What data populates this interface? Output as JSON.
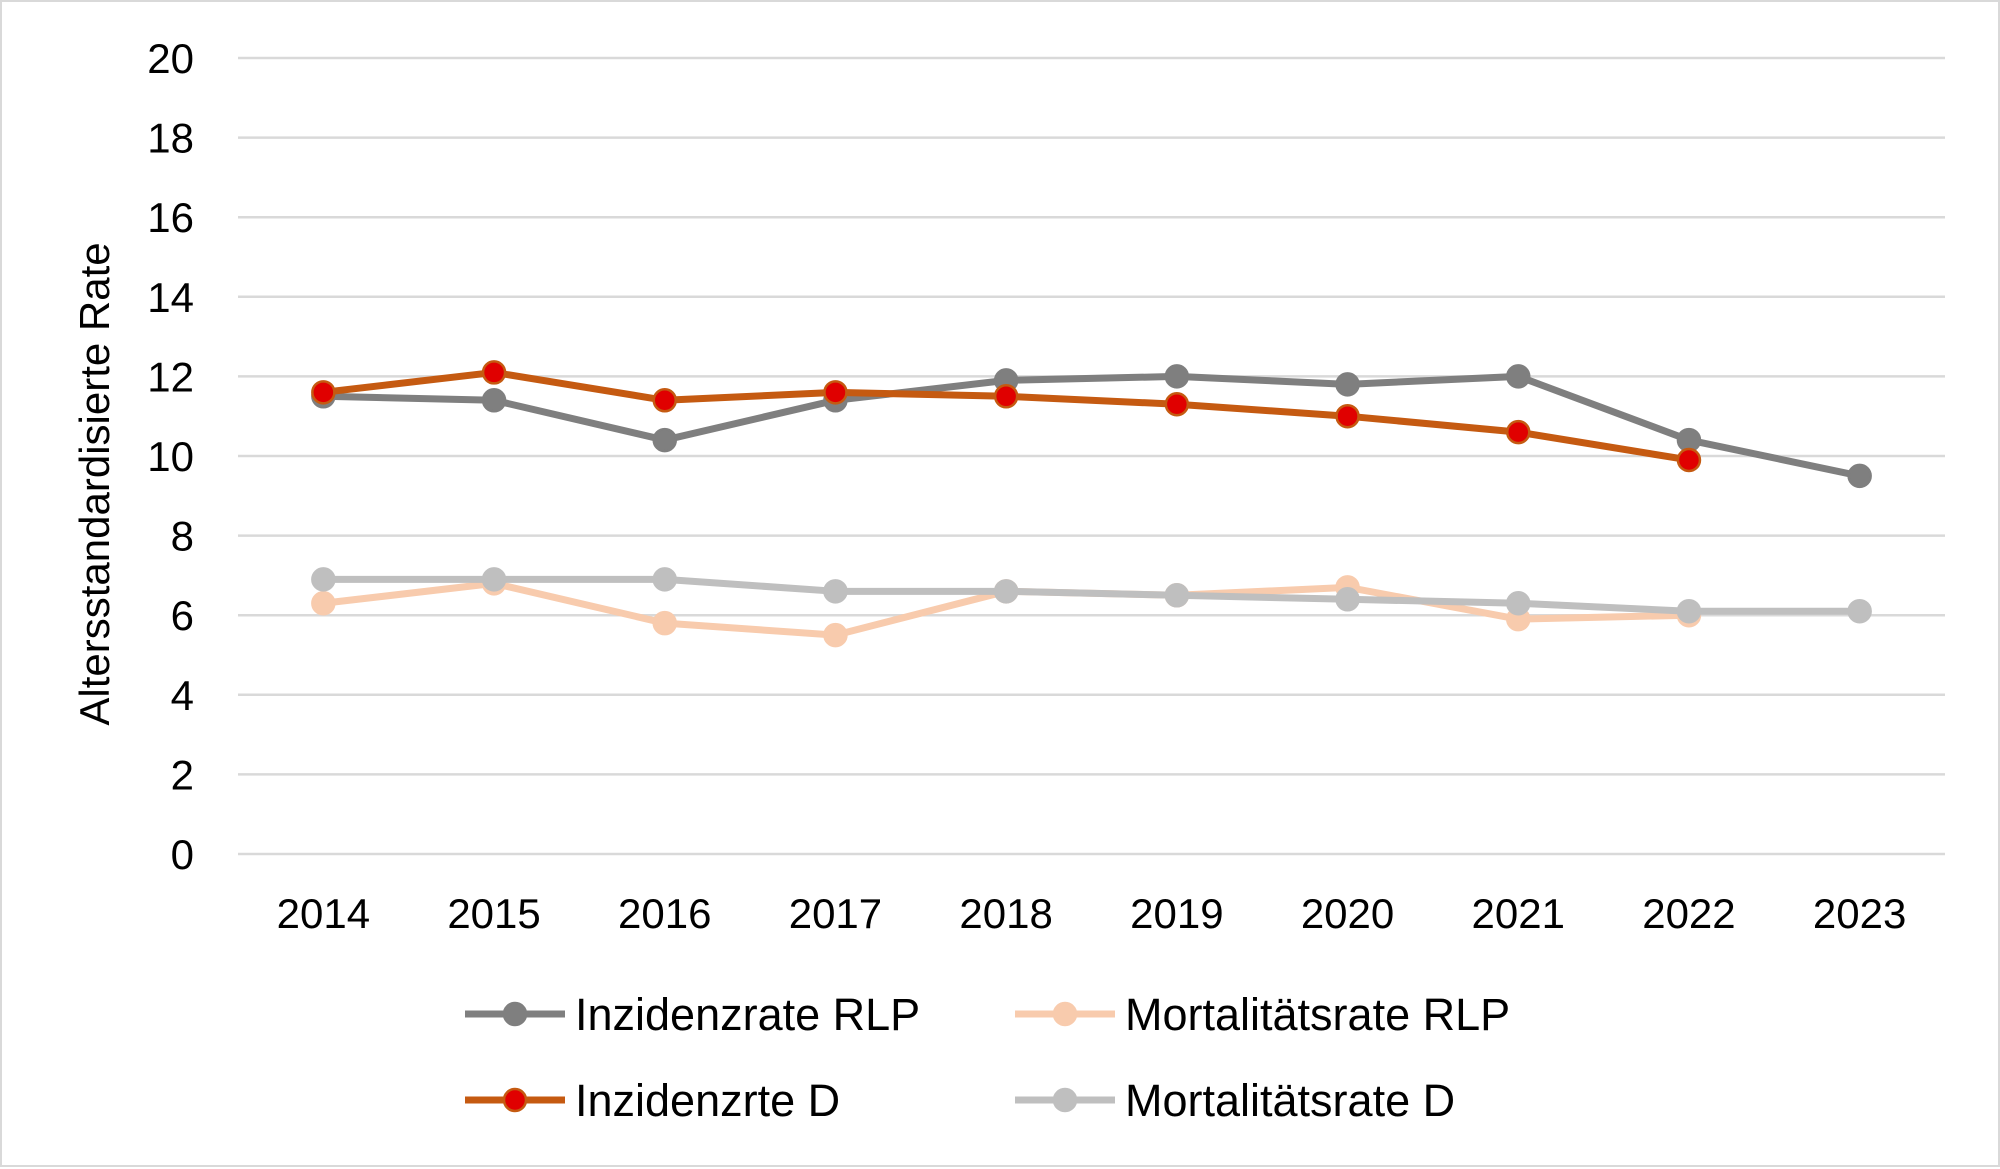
{
  "chart_data": {
    "type": "line",
    "title": "",
    "xlabel": "",
    "ylabel": "Altersstandardisierte Rate",
    "categories": [
      "2014",
      "2015",
      "2016",
      "2017",
      "2018",
      "2019",
      "2020",
      "2021",
      "2022",
      "2023"
    ],
    "ylim": [
      0,
      20
    ],
    "yticks": [
      0,
      2,
      4,
      6,
      8,
      10,
      12,
      14,
      16,
      18,
      20
    ],
    "grid": "horizontal",
    "legend_position": "bottom",
    "series": [
      {
        "name": "Inzidenzrate RLP",
        "color": "#7f7f7f",
        "marker_fill": "#7f7f7f",
        "values": [
          11.5,
          11.4,
          10.4,
          11.4,
          11.9,
          12.0,
          11.8,
          12.0,
          10.4,
          9.5
        ]
      },
      {
        "name": "Mortalitätsrate RLP",
        "color": "#f8cbad",
        "marker_fill": "#f8cbad",
        "values": [
          6.3,
          6.8,
          5.8,
          5.5,
          6.6,
          6.5,
          6.7,
          5.9,
          6.0,
          null
        ]
      },
      {
        "name": "Inzidenzrte D",
        "color": "#c55a11",
        "marker_fill": "#e00000",
        "values": [
          11.6,
          12.1,
          11.4,
          11.6,
          11.5,
          11.3,
          11.0,
          10.6,
          9.9,
          null
        ]
      },
      {
        "name": "Mortalitätsrate D",
        "color": "#bfbfbf",
        "marker_fill": "#bfbfbf",
        "values": [
          6.9,
          6.9,
          6.9,
          6.6,
          6.6,
          6.5,
          6.4,
          6.3,
          6.1,
          6.1
        ]
      }
    ]
  }
}
